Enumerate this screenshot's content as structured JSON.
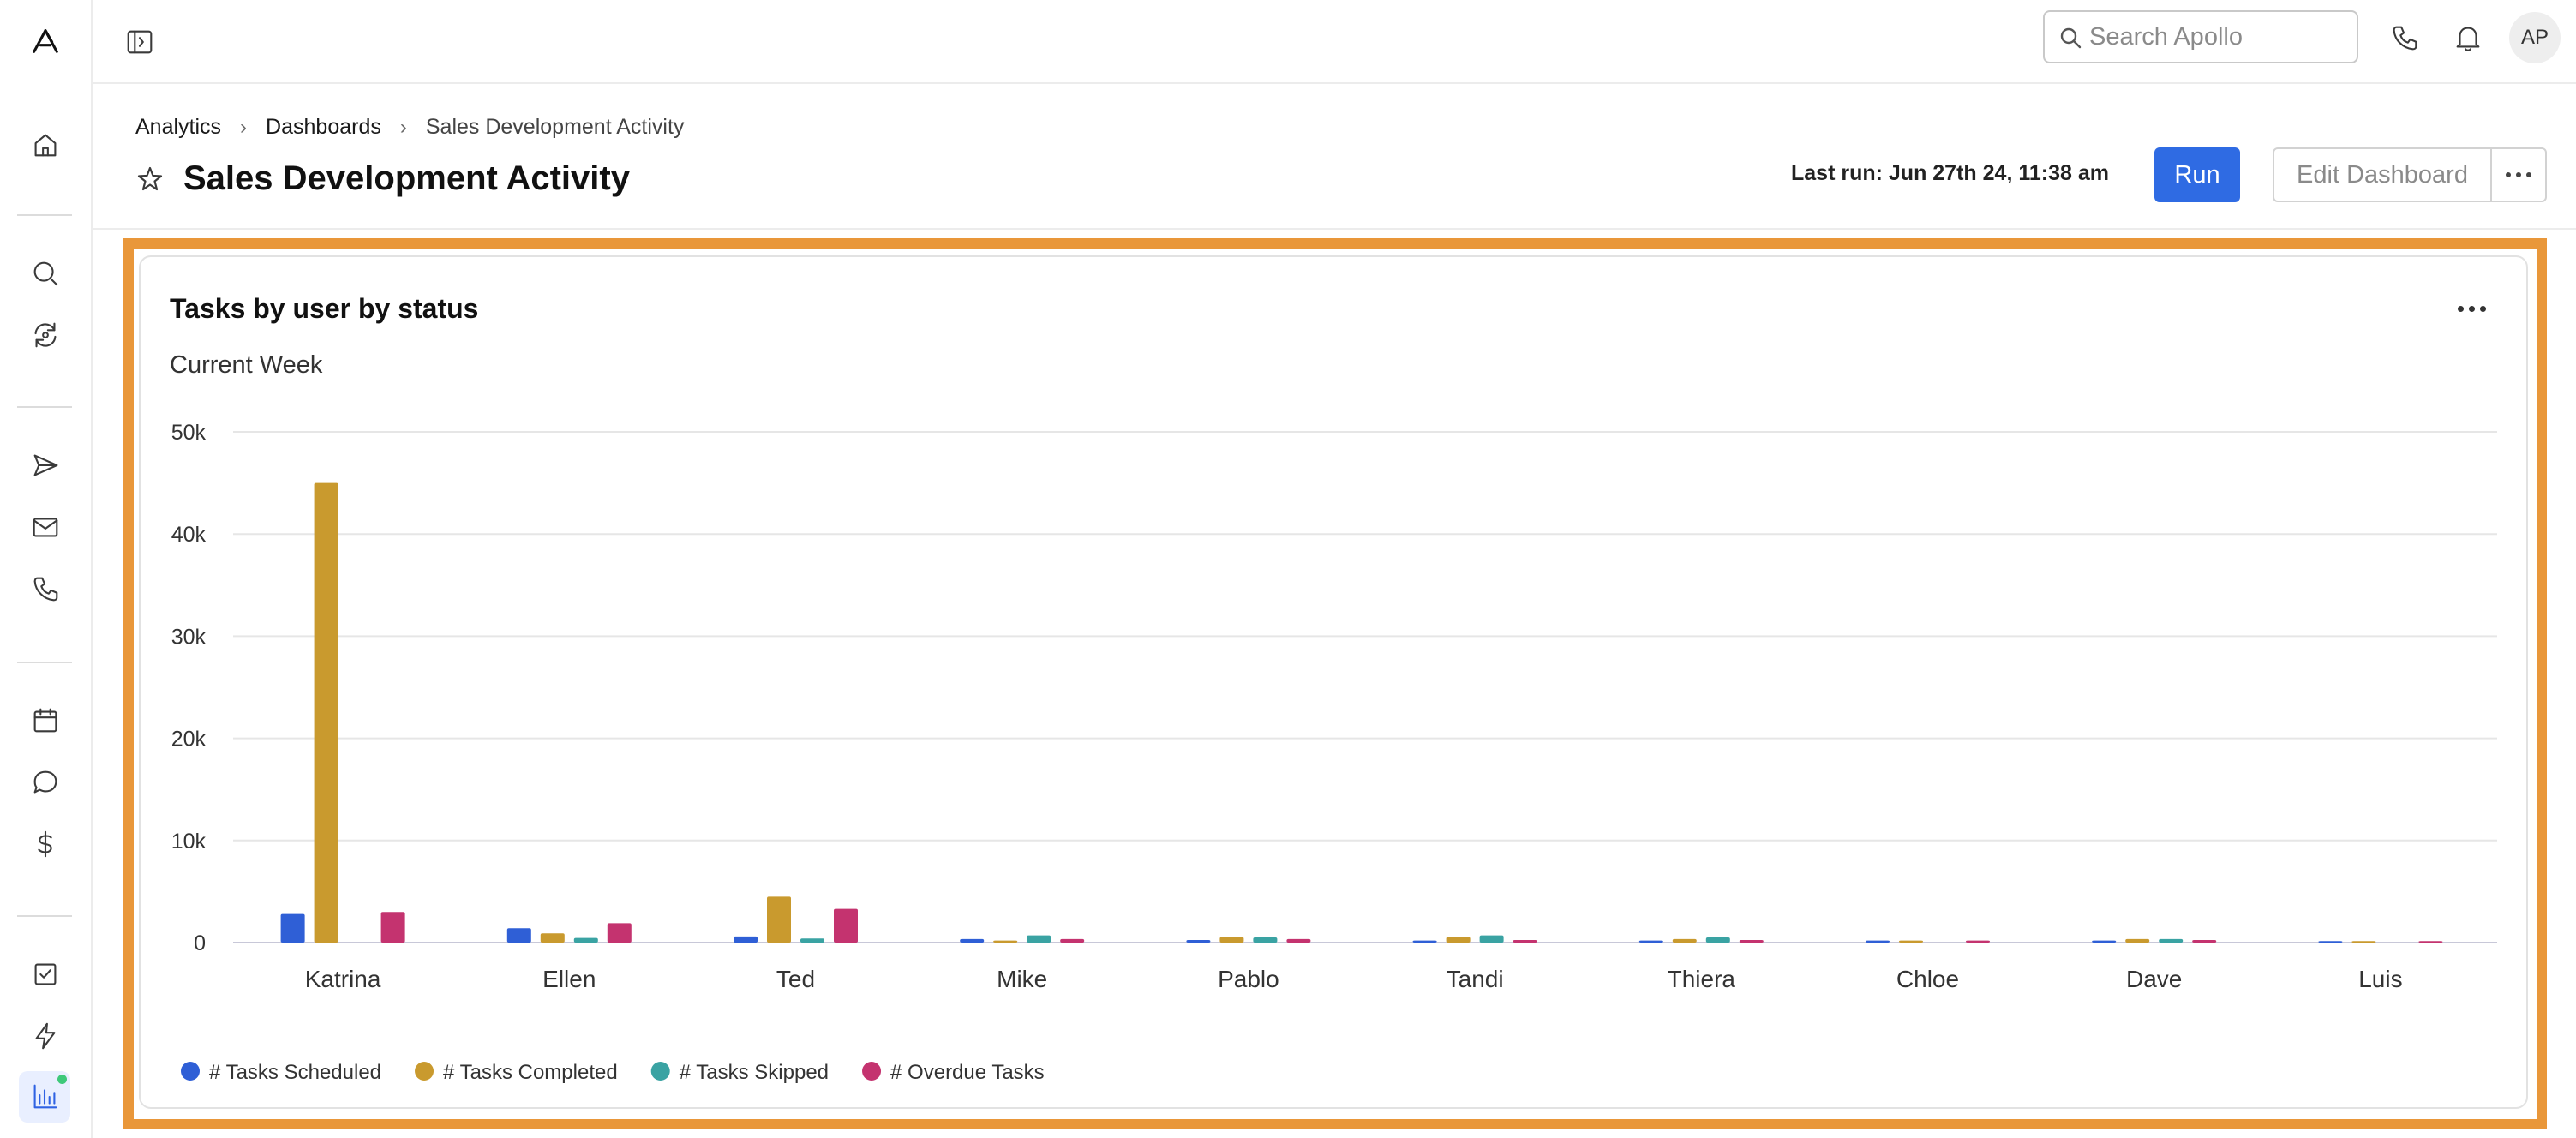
{
  "topbar": {
    "search_placeholder": "Search Apollo",
    "avatar_initials": "AP"
  },
  "breadcrumb": {
    "items": [
      "Analytics",
      "Dashboards",
      "Sales Development Activity"
    ]
  },
  "page": {
    "title": "Sales Development Activity",
    "last_run": "Last run: Jun 27th 24, 11:38 am",
    "run_label": "Run",
    "edit_label": "Edit Dashboard"
  },
  "card": {
    "title": "Tasks by user by status",
    "subtitle": "Current Week"
  },
  "chart_data": {
    "type": "bar",
    "title": "Tasks by user by status",
    "subtitle": "Current Week",
    "categories": [
      "Katrina",
      "Ellen",
      "Ted",
      "Mike",
      "Pablo",
      "Tandi",
      "Thiera",
      "Chloe",
      "Dave",
      "Luis"
    ],
    "ylim": [
      0,
      50000
    ],
    "yticks": [
      0,
      10000,
      20000,
      30000,
      40000,
      50000
    ],
    "ytick_labels": [
      "0",
      "10k",
      "20k",
      "30k",
      "40k",
      "50k"
    ],
    "grid": true,
    "legend_position": "bottom-left",
    "series": [
      {
        "name": "# Tasks Scheduled",
        "color": "#2f5fd6",
        "values": [
          2800,
          1400,
          600,
          350,
          250,
          200,
          200,
          200,
          200,
          150
        ]
      },
      {
        "name": "# Tasks Completed",
        "color": "#c99a2e",
        "values": [
          45000,
          900,
          4500,
          200,
          550,
          550,
          350,
          200,
          350,
          150
        ]
      },
      {
        "name": "# Tasks Skipped",
        "color": "#3aa3a3",
        "values": [
          0,
          450,
          400,
          700,
          500,
          700,
          500,
          0,
          350,
          0
        ]
      },
      {
        "name": "# Overdue Tasks",
        "color": "#c4336f",
        "values": [
          3000,
          1900,
          3300,
          350,
          350,
          250,
          250,
          200,
          250,
          150
        ]
      }
    ]
  }
}
